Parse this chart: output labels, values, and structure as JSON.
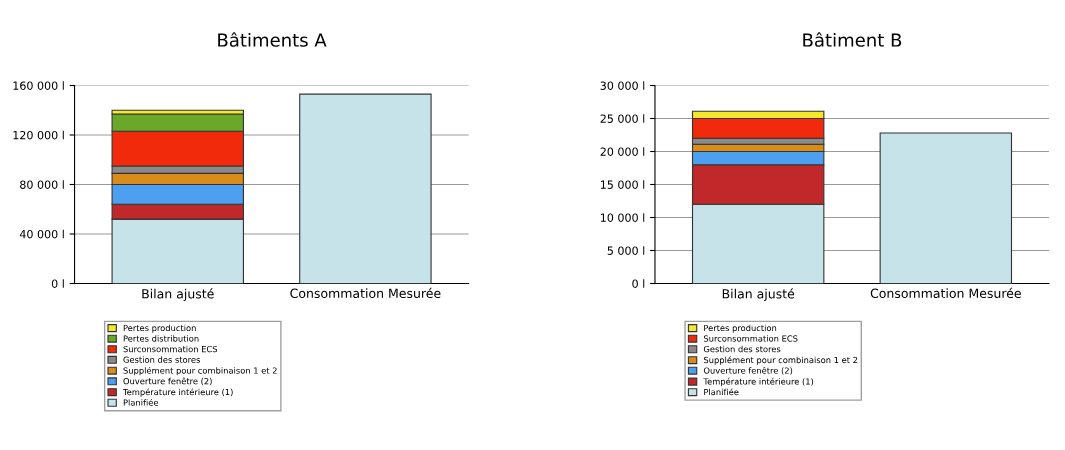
{
  "chart_data": [
    {
      "type": "bar",
      "title": "Bâtiments A",
      "stacked": true,
      "categories": [
        "Bilan ajusté",
        "Consommation Mesurée"
      ],
      "ylim": [
        0,
        160000
      ],
      "yticks": [
        {
          "value": 0,
          "label": "0 l"
        },
        {
          "value": 40000,
          "label": "40 000 l"
        },
        {
          "value": 80000,
          "label": "80 000 l"
        },
        {
          "value": 120000,
          "label": "120 000 l"
        },
        {
          "value": 160000,
          "label": "160 000 l"
        }
      ],
      "grid": "y",
      "legend": "bottom",
      "series": [
        {
          "name": "Planifiée",
          "color": "#c5e3e8",
          "values": [
            52000,
            null
          ]
        },
        {
          "name": "Température intérieure (1)",
          "color": "#c0282a",
          "values": [
            12000,
            null
          ]
        },
        {
          "name": "Ouverture fenêtre (2)",
          "color": "#4da0f0",
          "values": [
            16000,
            null
          ]
        },
        {
          "name": "Supplément pour combinaison 1 et 2",
          "color": "#d98c1a",
          "values": [
            9000,
            null
          ]
        },
        {
          "name": "Gestion des stores",
          "color": "#8a8a8a",
          "values": [
            6000,
            null
          ]
        },
        {
          "name": "Surconsommation ECS",
          "color": "#f02a0a",
          "values": [
            28000,
            null
          ]
        },
        {
          "name": "Pertes distribution",
          "color": "#6aa82a",
          "values": [
            14000,
            null
          ]
        },
        {
          "name": "Pertes production",
          "color": "#f5e82a",
          "values": [
            3000,
            null
          ]
        },
        {
          "color": "#c5e3e8",
          "values": [
            null,
            153000
          ]
        }
      ]
    },
    {
      "type": "bar",
      "title": "Bâtiment B",
      "stacked": true,
      "categories": [
        "Bilan ajusté",
        "Consommation Mesurée"
      ],
      "ylim": [
        0,
        30000
      ],
      "yticks": [
        {
          "value": 0,
          "label": "0 l"
        },
        {
          "value": 5000,
          "label": "5 000 l"
        },
        {
          "value": 10000,
          "label": "10 000 l"
        },
        {
          "value": 15000,
          "label": "15 000 l"
        },
        {
          "value": 20000,
          "label": "20 000 l"
        },
        {
          "value": 25000,
          "label": "25 000 l"
        },
        {
          "value": 30000,
          "label": "30 000 l"
        }
      ],
      "grid": "y",
      "legend": "bottom",
      "series": [
        {
          "name": "Planifiée",
          "color": "#c5e3e8",
          "values": [
            12000,
            null
          ]
        },
        {
          "name": "Température intérieure (1)",
          "color": "#c0282a",
          "values": [
            6000,
            null
          ]
        },
        {
          "name": "Ouverture fenêtre (2)",
          "color": "#4da0f0",
          "values": [
            2000,
            null
          ]
        },
        {
          "name": "Supplément pour combinaison 1 et 2",
          "color": "#d98c1a",
          "values": [
            1100,
            null
          ]
        },
        {
          "name": "Gestion des stores",
          "color": "#8a8a8a",
          "values": [
            900,
            null
          ]
        },
        {
          "name": "Surconsommation ECS",
          "color": "#f02a0a",
          "values": [
            3000,
            null
          ]
        },
        {
          "name": "Pertes production",
          "color": "#f5e82a",
          "values": [
            1100,
            null
          ]
        },
        {
          "color": "#c5e3e8",
          "values": [
            null,
            22800
          ]
        }
      ]
    }
  ]
}
